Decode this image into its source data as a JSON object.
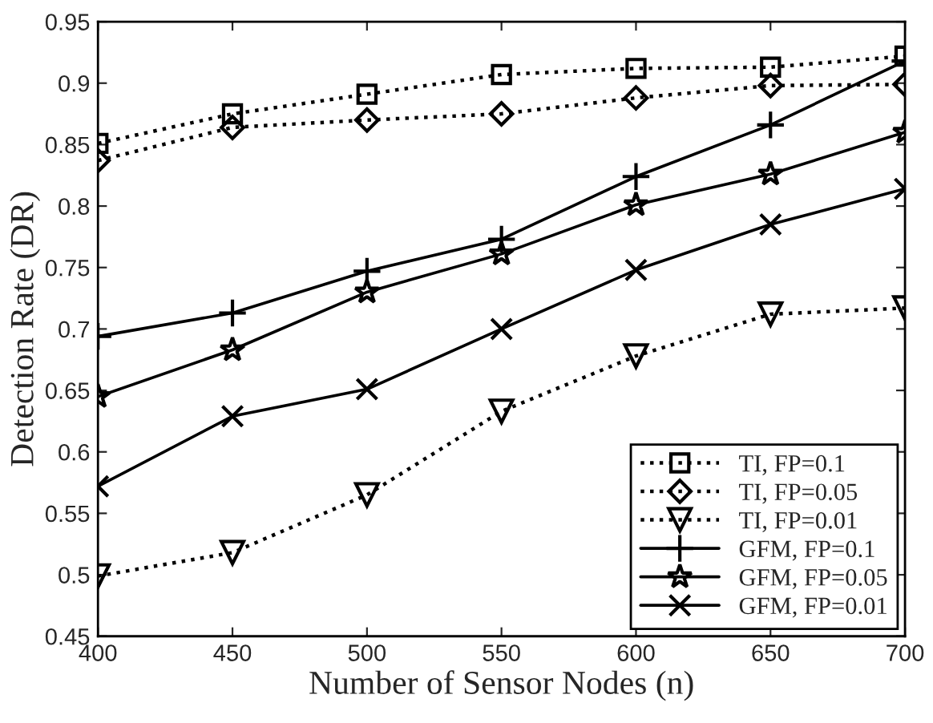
{
  "chart_data": {
    "type": "line",
    "xlabel": "Number of Sensor Nodes (n)",
    "ylabel": "Detection Rate (DR)",
    "x": [
      400,
      450,
      500,
      550,
      600,
      650,
      700
    ],
    "series": [
      {
        "name": "TI, FP=0.1",
        "color": "#000000",
        "marker": "square",
        "line_style": "dotted",
        "values": [
          0.851,
          0.875,
          0.891,
          0.907,
          0.912,
          0.913,
          0.922
        ]
      },
      {
        "name": "TI, FP=0.05",
        "color": "#000000",
        "marker": "diamond",
        "line_style": "dotted",
        "values": [
          0.837,
          0.864,
          0.87,
          0.875,
          0.888,
          0.898,
          0.899
        ]
      },
      {
        "name": "TI, FP=0.01",
        "color": "#000000",
        "marker": "triangle",
        "line_style": "dotted",
        "values": [
          0.499,
          0.518,
          0.565,
          0.633,
          0.678,
          0.712,
          0.717
        ]
      },
      {
        "name": "GFM, FP=0.1",
        "color": "#000000",
        "marker": "plus",
        "line_style": "solid",
        "values": [
          0.694,
          0.713,
          0.747,
          0.773,
          0.824,
          0.866,
          0.918
        ]
      },
      {
        "name": "GFM, FP=0.05",
        "color": "#000000",
        "marker": "star",
        "line_style": "solid",
        "values": [
          0.645,
          0.683,
          0.73,
          0.761,
          0.801,
          0.826,
          0.86
        ]
      },
      {
        "name": "GFM, FP=0.01",
        "color": "#000000",
        "marker": "cross",
        "line_style": "solid",
        "values": [
          0.572,
          0.629,
          0.651,
          0.7,
          0.748,
          0.785,
          0.814
        ]
      }
    ],
    "xlim": [
      400,
      700
    ],
    "xticks": [
      400,
      450,
      500,
      550,
      600,
      650,
      700
    ],
    "ylim": [
      0.45,
      0.95
    ],
    "yticks": [
      0.45,
      0.5,
      0.55,
      0.6,
      0.65,
      0.7,
      0.75,
      0.8,
      0.85,
      0.9,
      0.95
    ],
    "grid": false,
    "legend": "bottom right"
  }
}
